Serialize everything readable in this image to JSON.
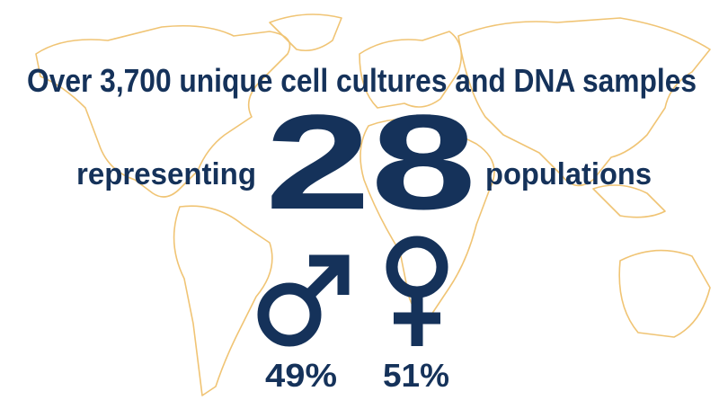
{
  "headline": "Over 3,700 unique cell cultures and DNA samples",
  "prefix": "representing",
  "count": "28",
  "suffix": "populations",
  "male_percent": "49%",
  "female_percent": "51%"
}
